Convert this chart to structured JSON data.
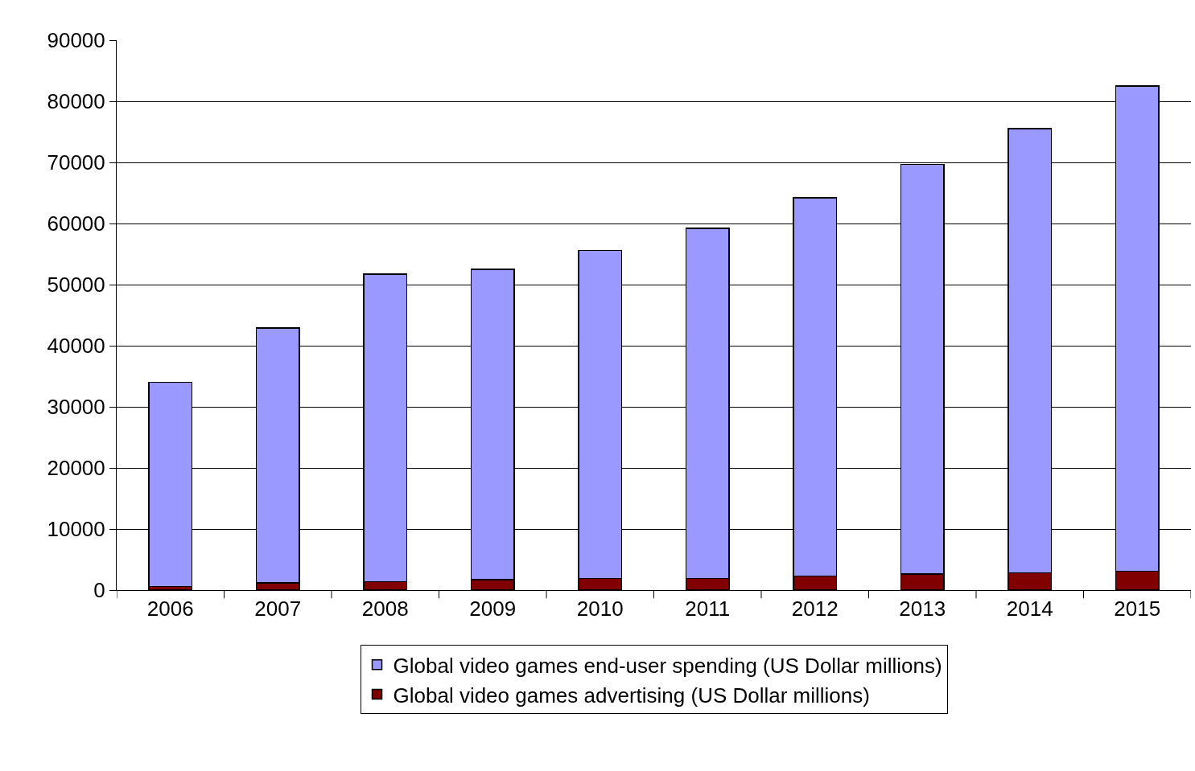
{
  "chart_data": {
    "type": "bar",
    "stacked": true,
    "categories": [
      "2006",
      "2007",
      "2008",
      "2009",
      "2010",
      "2011",
      "2012",
      "2013",
      "2014",
      "2015"
    ],
    "series": [
      {
        "name": "Global video games advertising (US Dollar millions)",
        "color": "#800000",
        "values": [
          600,
          1200,
          1400,
          1700,
          1900,
          1900,
          2300,
          2600,
          2800,
          3100
        ]
      },
      {
        "name": "Global video games end-user spending (US Dollar millions)",
        "color": "#9999ff",
        "values": [
          33400,
          41700,
          50300,
          50800,
          53700,
          57300,
          61900,
          67100,
          72700,
          79400
        ]
      }
    ],
    "ylim": [
      0,
      90000
    ],
    "yticks": [
      0,
      10000,
      20000,
      30000,
      40000,
      50000,
      60000,
      70000,
      80000,
      90000
    ],
    "grid": "y",
    "legend": "bottom"
  }
}
